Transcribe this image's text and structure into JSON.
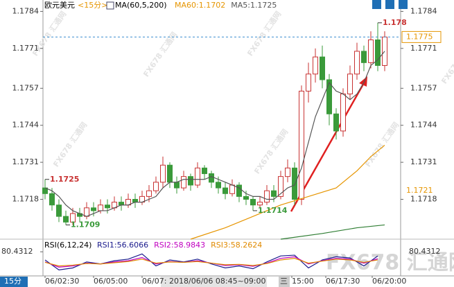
{
  "chart_data": [
    {
      "type": "candlestick",
      "title": "欧元美元",
      "period": "<15分>",
      "indicator": "MA(60,5,200)",
      "open": [
        1.1722,
        1.172,
        1.1716,
        1.1712,
        1.171,
        1.1713,
        1.1712,
        1.1715,
        1.1714,
        1.1716,
        1.1715,
        1.1717,
        1.1716,
        1.1718,
        1.1717,
        1.1719,
        1.1721,
        1.1724,
        1.173,
        1.1724,
        1.1722,
        1.1726,
        1.1723,
        1.1729,
        1.1727,
        1.1724,
        1.1722,
        1.172,
        1.1723,
        1.1719,
        1.1718,
        1.1716,
        1.1717,
        1.1721,
        1.1719,
        1.1726,
        1.1729,
        1.1718,
        1.1756,
        1.1762,
        1.1768,
        1.176,
        1.1748,
        1.1742,
        1.1755,
        1.1762,
        1.177,
        1.1766,
        1.1774,
        1.1765
      ],
      "high": [
        1.1725,
        1.1722,
        1.1718,
        1.1714,
        1.1715,
        1.1715,
        1.1717,
        1.1717,
        1.1718,
        1.1718,
        1.1719,
        1.1719,
        1.172,
        1.172,
        1.1721,
        1.1723,
        1.1726,
        1.1733,
        1.1731,
        1.1726,
        1.1728,
        1.1727,
        1.1731,
        1.173,
        1.1728,
        1.1726,
        1.1724,
        1.1725,
        1.1724,
        1.1721,
        1.1719,
        1.1719,
        1.1723,
        1.1723,
        1.1728,
        1.1732,
        1.1731,
        1.1758,
        1.1766,
        1.1771,
        1.1772,
        1.1762,
        1.175,
        1.1757,
        1.1765,
        1.1773,
        1.1772,
        1.1777,
        1.178,
        1.1777
      ],
      "low": [
        1.1718,
        1.1714,
        1.171,
        1.1709,
        1.1709,
        1.171,
        1.1711,
        1.1712,
        1.1713,
        1.1713,
        1.1714,
        1.1714,
        1.1715,
        1.1715,
        1.1716,
        1.1717,
        1.172,
        1.1722,
        1.1722,
        1.172,
        1.1721,
        1.1721,
        1.1722,
        1.1725,
        1.1722,
        1.172,
        1.1718,
        1.1719,
        1.1717,
        1.1716,
        1.1714,
        1.1715,
        1.1716,
        1.1717,
        1.1718,
        1.1724,
        1.1716,
        1.1716,
        1.1752,
        1.1759,
        1.1757,
        1.1744,
        1.1739,
        1.174,
        1.1753,
        1.176,
        1.1763,
        1.1764,
        1.1763,
        1.1763
      ],
      "close": [
        1.172,
        1.1716,
        1.1712,
        1.171,
        1.1713,
        1.1712,
        1.1715,
        1.1714,
        1.1716,
        1.1715,
        1.1717,
        1.1716,
        1.1718,
        1.1717,
        1.1719,
        1.1721,
        1.1724,
        1.173,
        1.1724,
        1.1722,
        1.1726,
        1.1723,
        1.1729,
        1.1727,
        1.1724,
        1.1722,
        1.172,
        1.1723,
        1.1719,
        1.1718,
        1.1716,
        1.1717,
        1.1721,
        1.1719,
        1.1726,
        1.1729,
        1.1718,
        1.1756,
        1.1762,
        1.1768,
        1.176,
        1.1748,
        1.1742,
        1.1755,
        1.1762,
        1.177,
        1.1766,
        1.1774,
        1.1765,
        1.1775
      ],
      "up_color": "#c83232",
      "down_color": "#3a9a3a",
      "ylim": [
        1.1704,
        1.1788
      ],
      "yticks": [
        1.1784,
        1.1771,
        1.1757,
        1.1744,
        1.1731,
        1.1718
      ],
      "xticks": [
        {
          "value": 0,
          "label": "06/02:30"
        },
        {
          "value": 7,
          "label": "06/05:00"
        },
        {
          "value": 14,
          "label": "06/07:"
        },
        {
          "value": 35.6,
          "label": "15:00"
        },
        {
          "value": 40.5,
          "label": "06/17:30"
        },
        {
          "value": 47.2,
          "label": "06/20:00"
        }
      ],
      "series": [
        {
          "name": "MA60:1.1702",
          "color": "#e69500",
          "x": [
            21,
            26,
            30,
            34,
            38,
            42,
            45,
            47,
            49
          ],
          "values": [
            1.1704,
            1.1708,
            1.1712,
            1.1716,
            1.1719,
            1.1722,
            1.1728,
            1.1733,
            1.1737
          ]
        },
        {
          "name": "MA5:1.1725",
          "color": "#555555",
          "values": [
            1.1722,
            1.1721,
            1.1719,
            1.1716,
            1.1714,
            1.1713,
            1.1712,
            1.1713,
            1.1714,
            1.1714,
            1.1715,
            1.1716,
            1.1716,
            1.1717,
            1.1717,
            1.1718,
            1.1719,
            1.1722,
            1.1724,
            1.1724,
            1.1725,
            1.1725,
            1.1725,
            1.1725,
            1.1726,
            1.1725,
            1.1724,
            1.1723,
            1.1722,
            1.172,
            1.1719,
            1.1719,
            1.1718,
            1.1718,
            1.172,
            1.1722,
            1.1723,
            1.1729,
            1.1738,
            1.1747,
            1.1753,
            1.1759,
            1.1756,
            1.1755,
            1.1753,
            1.1755,
            1.1759,
            1.1765,
            1.1767,
            1.177
          ]
        },
        {
          "color": "#2e7d32",
          "x": [
            34,
            40,
            45,
            49
          ],
          "values": [
            1.1704,
            1.1706,
            1.1708,
            1.1709
          ]
        }
      ],
      "annotations": [
        {
          "index": 0,
          "value": 1.1725,
          "color": "#c83232"
        },
        {
          "index": 3,
          "value": 1.1709,
          "color": "#3a9a3a"
        },
        {
          "index": 30,
          "value": 1.1714,
          "color": "#3a9a3a"
        },
        {
          "index": 48,
          "value": 1.178,
          "color": "#c83232"
        }
      ],
      "last_price": 1.1775,
      "ma60_right_label": 1.1721,
      "cursor_label": "2018/06/06 08:45~09:00",
      "weekday_label": "三",
      "period_button": "15分",
      "watermark": "FX678 汇通网"
    },
    {
      "type": "line",
      "title": "RSI(6,12,24)",
      "ylim": [
        20,
        86
      ],
      "yticks": [
        80.4312
      ],
      "x": [
        0,
        2,
        4,
        6,
        8,
        10,
        12,
        14,
        16,
        18,
        20,
        22,
        24,
        26,
        28,
        30,
        32,
        34,
        36,
        38,
        40,
        42,
        44,
        46,
        48
      ],
      "series": [
        {
          "name": "RSI1:56.6066",
          "color": "#1a1a8c",
          "values": [
            60,
            35,
            40,
            55,
            50,
            58,
            62,
            75,
            45,
            60,
            55,
            62,
            50,
            40,
            45,
            38,
            55,
            70,
            72,
            40,
            60,
            68,
            65,
            45,
            70
          ]
        },
        {
          "name": "RSI2:58.9843",
          "color": "#c000c0",
          "values": [
            55,
            42,
            45,
            52,
            50,
            55,
            58,
            66,
            50,
            56,
            54,
            58,
            52,
            46,
            48,
            44,
            52,
            64,
            68,
            50,
            58,
            64,
            62,
            52,
            63
          ]
        },
        {
          "name": "RSI3:58.2624",
          "color": "#e08a00",
          "values": [
            54,
            45,
            47,
            51,
            50,
            53,
            56,
            62,
            52,
            55,
            54,
            56,
            52,
            48,
            49,
            46,
            51,
            60,
            64,
            52,
            57,
            62,
            60,
            54,
            60
          ]
        }
      ]
    }
  ]
}
